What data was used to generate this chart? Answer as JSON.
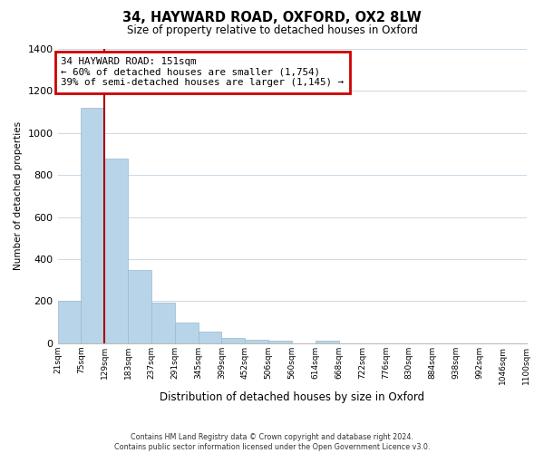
{
  "title": "34, HAYWARD ROAD, OXFORD, OX2 8LW",
  "subtitle": "Size of property relative to detached houses in Oxford",
  "xlabel": "Distribution of detached houses by size in Oxford",
  "ylabel": "Number of detached properties",
  "bar_values": [
    200,
    1120,
    880,
    350,
    195,
    100,
    55,
    25,
    15,
    10,
    0,
    10,
    0,
    0,
    0,
    0,
    0,
    0,
    0,
    0
  ],
  "bin_labels": [
    "21sqm",
    "75sqm",
    "129sqm",
    "183sqm",
    "237sqm",
    "291sqm",
    "345sqm",
    "399sqm",
    "452sqm",
    "506sqm",
    "560sqm",
    "614sqm",
    "668sqm",
    "722sqm",
    "776sqm",
    "830sqm",
    "884sqm",
    "938sqm",
    "992sqm",
    "1046sqm",
    "1100sqm"
  ],
  "bar_color": "#b8d4e8",
  "bar_edge_color": "#9ab8d0",
  "red_line_x": 2.0,
  "annotation_title": "34 HAYWARD ROAD: 151sqm",
  "annotation_line1": "← 60% of detached houses are smaller (1,754)",
  "annotation_line2": "39% of semi-detached houses are larger (1,145) →",
  "annotation_box_color": "#ffffff",
  "annotation_box_edge": "#cc0000",
  "red_line_color": "#aa0000",
  "ylim": [
    0,
    1400
  ],
  "yticks": [
    0,
    200,
    400,
    600,
    800,
    1000,
    1200,
    1400
  ],
  "footer_line1": "Contains HM Land Registry data © Crown copyright and database right 2024.",
  "footer_line2": "Contains public sector information licensed under the Open Government Licence v3.0.",
  "background_color": "#ffffff",
  "grid_color": "#ccd8e4"
}
